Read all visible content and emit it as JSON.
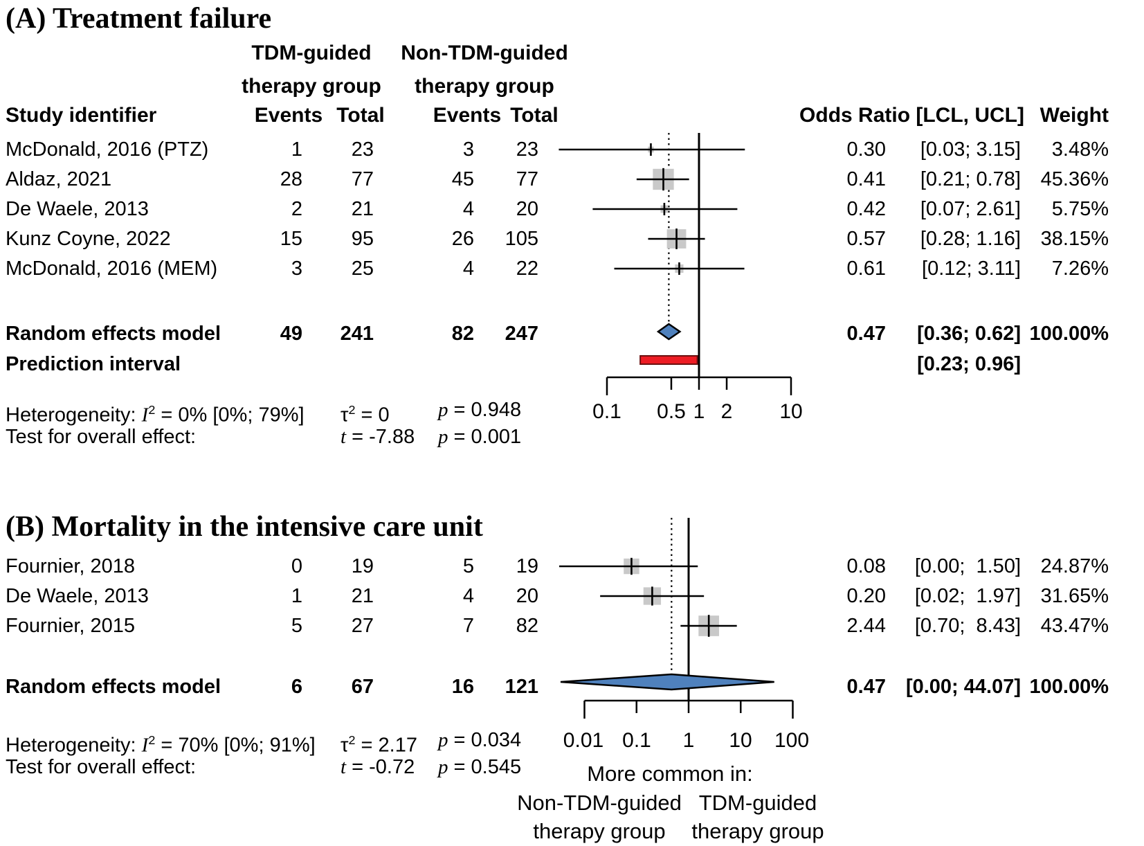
{
  "colors": {
    "square": "#c9c9c9",
    "diamond_fill": "#4f81bd",
    "diamond_stroke": "#000000",
    "prediction_fill": "#ed1c24",
    "prediction_stroke": "#6b0f0f",
    "line": "#000000"
  },
  "panels": [
    {
      "title": "(A) Treatment failure",
      "headers": {
        "group1_line1": "TDM-guided",
        "group1_line2": "therapy group",
        "group2_line1": "Non-TDM-guided",
        "group2_line2": "therapy group",
        "study": "Study identifier",
        "events": "Events",
        "total": "Total",
        "or": "Odds Ratio [LCL, UCL]",
        "weight": "Weight"
      },
      "studies": [
        {
          "label": "McDonald, 2016 (PTZ)",
          "e1": "1",
          "t1": "23",
          "e2": "3",
          "t2": "23",
          "or": "0.30",
          "ci": "[0.03; 3.15]",
          "weight": "3.48%"
        },
        {
          "label": "Aldaz, 2021",
          "e1": "28",
          "t1": "77",
          "e2": "45",
          "t2": "77",
          "or": "0.41",
          "ci": "[0.21; 0.78]",
          "weight": "45.36%"
        },
        {
          "label": "De Waele, 2013",
          "e1": "2",
          "t1": "21",
          "e2": "4",
          "t2": "20",
          "or": "0.42",
          "ci": "[0.07; 2.61]",
          "weight": "5.75%"
        },
        {
          "label": "Kunz Coyne, 2022",
          "e1": "15",
          "t1": "95",
          "e2": "26",
          "t2": "105",
          "or": "0.57",
          "ci": "[0.28; 1.16]",
          "weight": "38.15%"
        },
        {
          "label": "McDonald, 2016 (MEM)",
          "e1": "3",
          "t1": "25",
          "e2": "4",
          "t2": "22",
          "or": "0.61",
          "ci": "[0.12; 3.11]",
          "weight": "7.26%"
        }
      ],
      "summary": {
        "label": "Random effects model",
        "e1": "49",
        "t1": "241",
        "e2": "82",
        "t2": "247",
        "or": "0.47",
        "ci": "[0.36; 0.62]",
        "weight": "100.00%"
      },
      "prediction": {
        "label": "Prediction interval",
        "ci": "[0.23; 0.96]"
      },
      "het": {
        "label": "Heterogeneity: ",
        "i": "I",
        "i_sup": "2",
        "i_rest": " = 0% [0%; 79%]",
        "tau": "τ",
        "tau_sup": "2",
        "tau_rest": " = 0",
        "p": "p",
        "p_rest": " = 0.948"
      },
      "test": {
        "label": "Test for overall effect:",
        "t": "t",
        "t_rest": " = -7.88",
        "p": "p",
        "p_rest": " = 0.001"
      }
    },
    {
      "title": "(B) Mortality in the intensive care unit",
      "studies": [
        {
          "label": "Fournier, 2018",
          "e1": "0",
          "t1": "19",
          "e2": "5",
          "t2": "19",
          "or": "0.08",
          "ci": "[0.00;  1.50]",
          "weight": "24.87%"
        },
        {
          "label": "De Waele, 2013",
          "e1": "1",
          "t1": "21",
          "e2": "4",
          "t2": "20",
          "or": "0.20",
          "ci": "[0.02;  1.97]",
          "weight": "31.65%"
        },
        {
          "label": "Fournier, 2015",
          "e1": "5",
          "t1": "27",
          "e2": "7",
          "t2": "82",
          "or": "2.44",
          "ci": "[0.70;  8.43]",
          "weight": "43.47%"
        }
      ],
      "summary": {
        "label": "Random effects model",
        "e1": "6",
        "t1": "67",
        "e2": "16",
        "t2": "121",
        "or": "0.47",
        "ci": "[0.00; 44.07]",
        "weight": "100.00%"
      },
      "het": {
        "label": "Heterogeneity: ",
        "i": "I",
        "i_sup": "2",
        "i_rest": " = 70% [0%; 91%]",
        "tau": "τ",
        "tau_sup": "2",
        "tau_rest": " = 2.17",
        "p": "p",
        "p_rest": " = 0.034"
      },
      "test": {
        "label": "Test for overall effect:",
        "t": "t",
        "t_rest": " = -0.72",
        "p": "p",
        "p_rest": " = 0.545"
      },
      "footer": {
        "more_common": "More common in:",
        "left_line1": "Non-TDM-guided",
        "left_line2": "therapy group",
        "right_line1": "TDM-guided",
        "right_line2": "therapy group"
      }
    }
  ],
  "chart_data": [
    {
      "type": "forest",
      "title": "(A) Treatment failure",
      "effect_measure": "Odds Ratio [LCL, UCL]",
      "scale": "log10",
      "axis_ticks": [
        0.1,
        0.5,
        1,
        2,
        10
      ],
      "ref_line": 1,
      "pooled_line": 0.47,
      "studies": [
        {
          "label": "McDonald, 2016 (PTZ)",
          "events_tdm": 1,
          "total_tdm": 23,
          "events_nontdm": 3,
          "total_nontdm": 23,
          "or": 0.3,
          "lcl": 0.03,
          "ucl": 3.15,
          "weight_pct": 3.48
        },
        {
          "label": "Aldaz, 2021",
          "events_tdm": 28,
          "total_tdm": 77,
          "events_nontdm": 45,
          "total_nontdm": 77,
          "or": 0.41,
          "lcl": 0.21,
          "ucl": 0.78,
          "weight_pct": 45.36
        },
        {
          "label": "De Waele, 2013",
          "events_tdm": 2,
          "total_tdm": 21,
          "events_nontdm": 4,
          "total_nontdm": 20,
          "or": 0.42,
          "lcl": 0.07,
          "ucl": 2.61,
          "weight_pct": 5.75
        },
        {
          "label": "Kunz Coyne, 2022",
          "events_tdm": 15,
          "total_tdm": 95,
          "events_nontdm": 26,
          "total_nontdm": 105,
          "or": 0.57,
          "lcl": 0.28,
          "ucl": 1.16,
          "weight_pct": 38.15
        },
        {
          "label": "McDonald, 2016 (MEM)",
          "events_tdm": 3,
          "total_tdm": 25,
          "events_nontdm": 4,
          "total_nontdm": 22,
          "or": 0.61,
          "lcl": 0.12,
          "ucl": 3.11,
          "weight_pct": 7.26
        }
      ],
      "summary": {
        "label": "Random effects model",
        "events_tdm": 49,
        "total_tdm": 241,
        "events_nontdm": 82,
        "total_nontdm": 247,
        "or": 0.47,
        "lcl": 0.36,
        "ucl": 0.62,
        "weight_pct": 100.0
      },
      "prediction_interval": {
        "lcl": 0.23,
        "ucl": 0.96
      },
      "heterogeneity": "I2 = 0% [0%; 79%], tau2 = 0, p = 0.948",
      "overall_effect": "t = -7.88, p = 0.001"
    },
    {
      "type": "forest",
      "title": "(B) Mortality in the intensive care unit",
      "effect_measure": "Odds Ratio [LCL, UCL]",
      "scale": "log10",
      "axis_ticks": [
        0.01,
        0.1,
        1,
        10,
        100
      ],
      "ref_line": 1,
      "pooled_line": 0.47,
      "studies": [
        {
          "label": "Fournier, 2018",
          "events_tdm": 0,
          "total_tdm": 19,
          "events_nontdm": 5,
          "total_nontdm": 19,
          "or": 0.08,
          "lcl": 0.0,
          "ucl": 1.5,
          "weight_pct": 24.87
        },
        {
          "label": "De Waele, 2013",
          "events_tdm": 1,
          "total_tdm": 21,
          "events_nontdm": 4,
          "total_nontdm": 20,
          "or": 0.2,
          "lcl": 0.02,
          "ucl": 1.97,
          "weight_pct": 31.65
        },
        {
          "label": "Fournier, 2015",
          "events_tdm": 5,
          "total_tdm": 27,
          "events_nontdm": 7,
          "total_nontdm": 82,
          "or": 2.44,
          "lcl": 0.7,
          "ucl": 8.43,
          "weight_pct": 43.47
        }
      ],
      "summary": {
        "label": "Random effects model",
        "events_tdm": 6,
        "total_tdm": 67,
        "events_nontdm": 16,
        "total_nontdm": 121,
        "or": 0.47,
        "lcl": 0.0,
        "ucl": 44.07,
        "weight_pct": 100.0
      },
      "heterogeneity": "I2 = 70% [0%; 91%], tau2 = 2.17, p = 0.034",
      "overall_effect": "t = -0.72, p = 0.545",
      "axis_footer": [
        "More common in:",
        "Non-TDM-guided therapy group",
        "TDM-guided therapy group"
      ]
    }
  ]
}
